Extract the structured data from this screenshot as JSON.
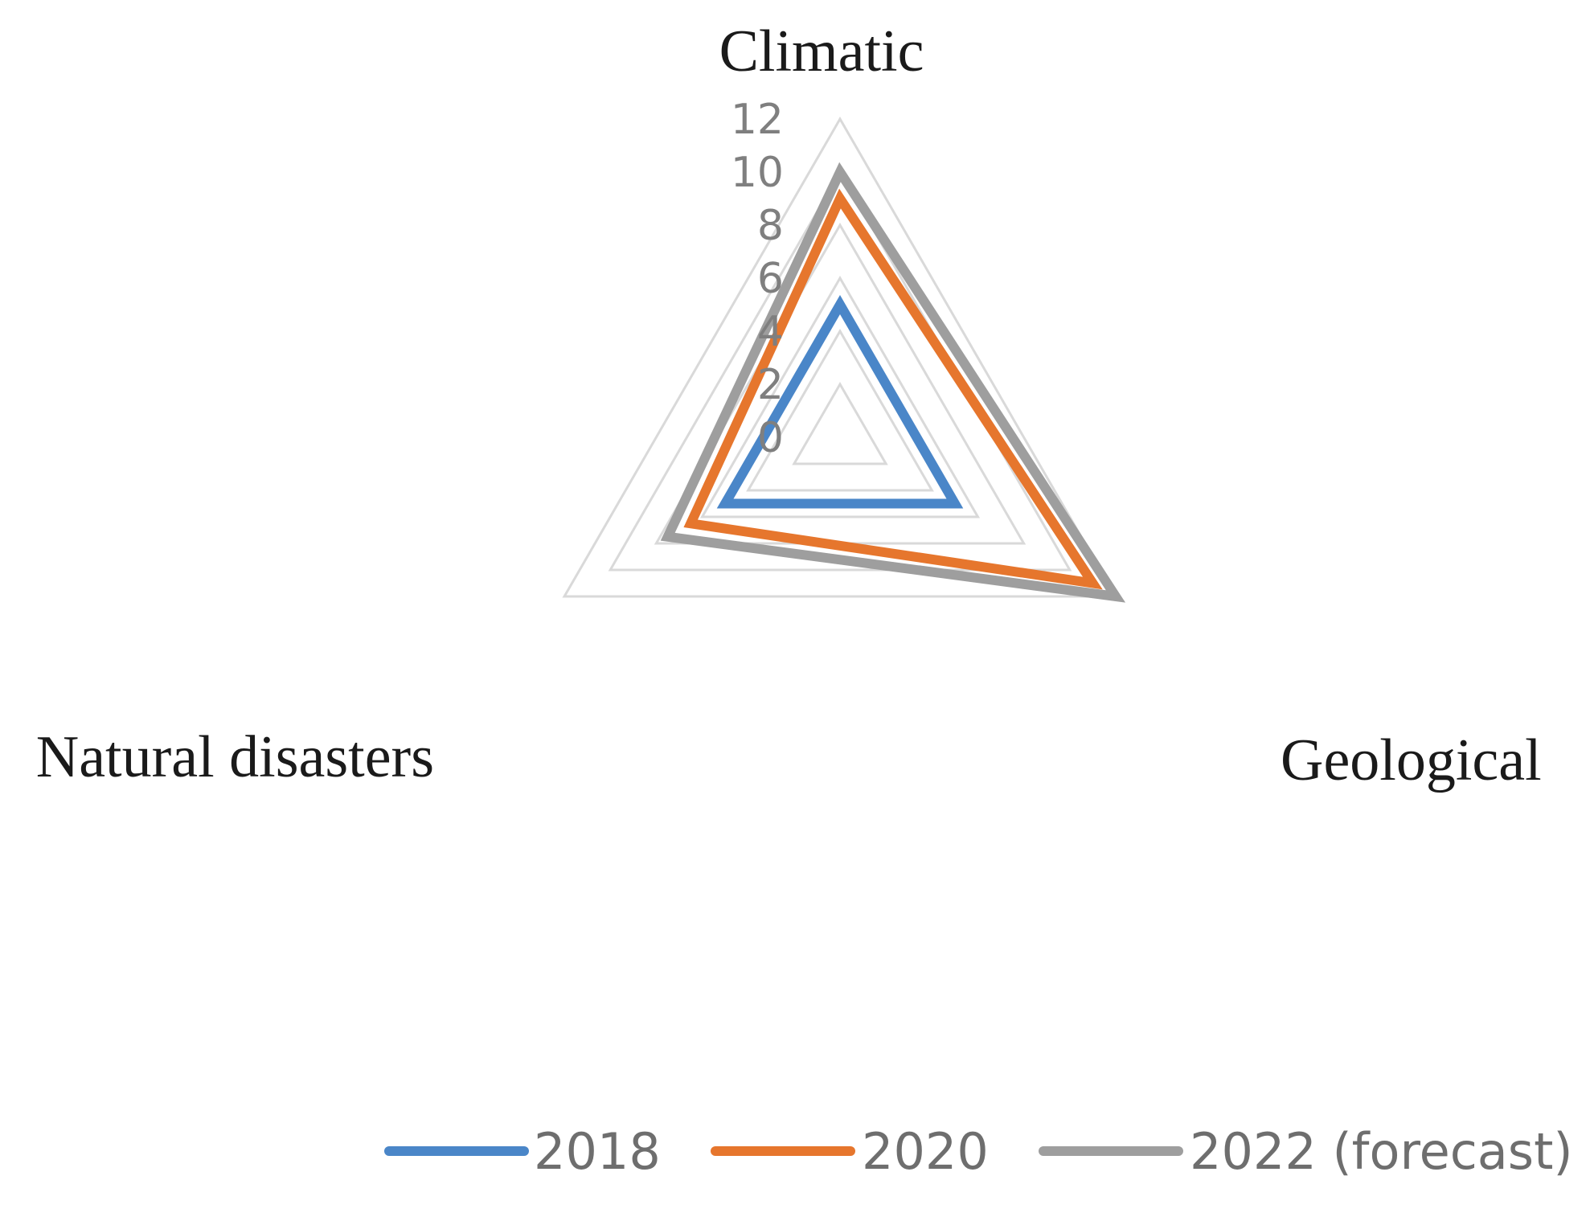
{
  "chart_data": {
    "type": "radar",
    "categories": [
      "Climatic",
      "Geological",
      "Natural disasters"
    ],
    "rlim": [
      0,
      12
    ],
    "ticks": [
      "0",
      "2",
      "4",
      "6",
      "8",
      "10",
      "12"
    ],
    "grid": true,
    "legend_position": "bottom",
    "series": [
      {
        "name": "2018",
        "color": "#4a86c8",
        "values": [
          5,
          5,
          5
        ]
      },
      {
        "name": "2020",
        "color": "#e6762d",
        "values": [
          9,
          11,
          6.5
        ]
      },
      {
        "name": "2022 (forecast)",
        "color": "#9e9e9e",
        "values": [
          10,
          12,
          7.5
        ]
      }
    ]
  },
  "colors": {
    "grid": "#d9d9d9",
    "tick_text": "#7f7f7f",
    "category_text": "#1a1a1a",
    "legend_text": "#6e6e6e"
  }
}
